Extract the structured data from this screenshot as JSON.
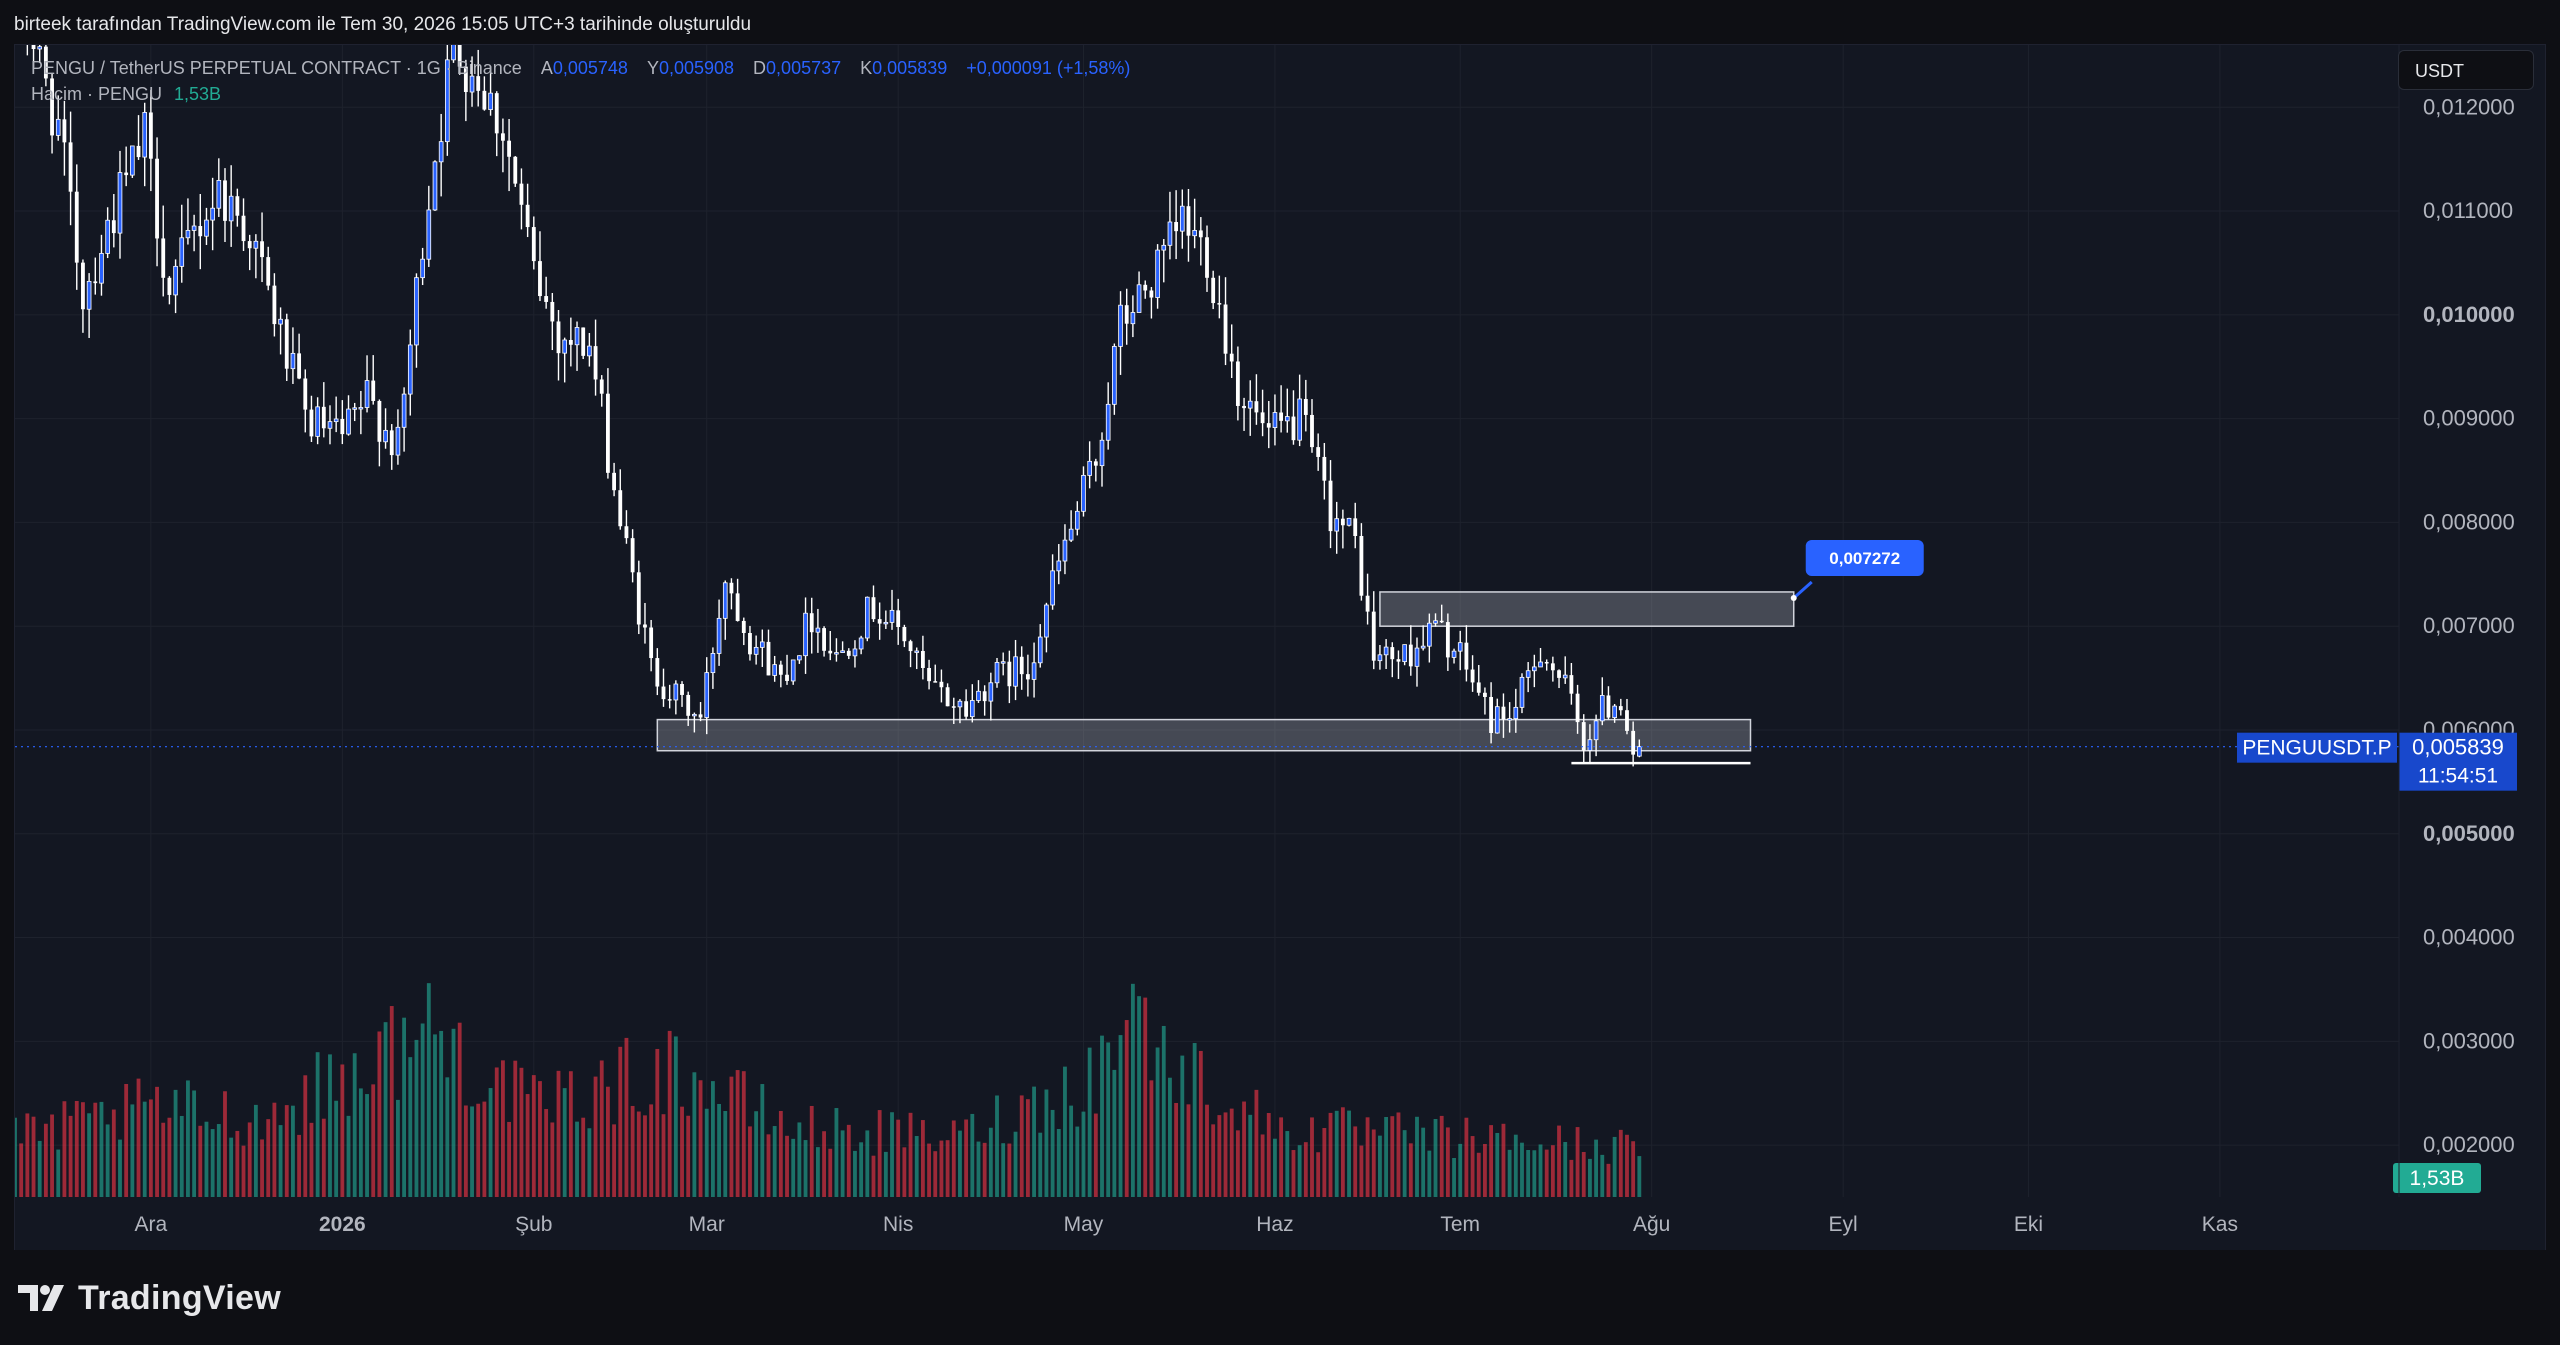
{
  "header": {
    "caption": "birteek tarafından TradingView.com ile Tem 30, 2026 15:05 UTC+3 tarihinde oluşturuldu"
  },
  "legend": {
    "symbol": "PENGU / TetherUS PERPETUAL CONTRACT · 1G · Binance",
    "open_label": "A",
    "open": "0,005748",
    "high_label": "Y",
    "high": "0,005908",
    "low_label": "D",
    "low": "0,005737",
    "close_label": "K",
    "close": "0,005839",
    "change": "+0,000091 (+1,58%)",
    "volume_label": "Hacim · PENGU",
    "volume_value": "1,53B"
  },
  "currency": "USDT",
  "footer": {
    "brand": "TradingView"
  },
  "colors": {
    "background": "#131722",
    "grid": "#1e222d",
    "candle_up": "#2962ff",
    "candle_down": "#ffffff",
    "volume_up": "#22ab94",
    "volume_down": "#f23645",
    "price_tag": "#1848cc",
    "callout": "#2962ff"
  },
  "chart_data": {
    "type": "candlestick",
    "symbol": "PENGUUSDT.P",
    "interval": "1G",
    "ylim": [
      0.0015,
      0.0126
    ],
    "y_ticks": [
      "0,012000",
      "0,011000",
      "0,010000",
      "0,009000",
      "0,008000",
      "0,007000",
      "0,006000",
      "0,005000",
      "0,004000",
      "0,003000",
      "0,002000"
    ],
    "y_tick_values": [
      0.012,
      0.011,
      0.01,
      0.009,
      0.008,
      0.007,
      0.006,
      0.005,
      0.004,
      0.003,
      0.002
    ],
    "y_ticks_bold": [
      "0,010000",
      "0,005000"
    ],
    "x_ticks": [
      {
        "label": "Ara",
        "date": "2025-12-01",
        "bold": false
      },
      {
        "label": "2026",
        "date": "2026-01-01",
        "bold": true
      },
      {
        "label": "Şub",
        "date": "2026-02-01",
        "bold": false
      },
      {
        "label": "Mar",
        "date": "2026-03-01",
        "bold": false
      },
      {
        "label": "Nis",
        "date": "2026-04-01",
        "bold": false
      },
      {
        "label": "May",
        "date": "2026-05-01",
        "bold": false
      },
      {
        "label": "Haz",
        "date": "2026-06-01",
        "bold": false
      },
      {
        "label": "Tem",
        "date": "2026-07-01",
        "bold": false
      },
      {
        "label": "Ağu",
        "date": "2026-08-01",
        "bold": false
      },
      {
        "label": "Eyl",
        "date": "2026-09-01",
        "bold": false
      },
      {
        "label": "Eki",
        "date": "2026-10-01",
        "bold": false
      },
      {
        "label": "Kas",
        "date": "2026-11-01",
        "bold": false
      }
    ],
    "x_range": [
      "2025-11-09",
      "2026-11-30"
    ],
    "grid": true,
    "price_path": {
      "start_date": "2025-11-09",
      "end_date": "2026-07-30",
      "points": [
        [
          "2025-11-09",
          0.0132
        ],
        [
          "2025-11-16",
          0.0118
        ],
        [
          "2025-11-20",
          0.0102
        ],
        [
          "2025-11-25",
          0.011
        ],
        [
          "2025-11-30",
          0.0117
        ],
        [
          "2025-12-04",
          0.0102
        ],
        [
          "2025-12-08",
          0.0108
        ],
        [
          "2025-12-12",
          0.0112
        ],
        [
          "2025-12-17",
          0.0108
        ],
        [
          "2025-12-22",
          0.0098
        ],
        [
          "2025-12-26",
          0.009
        ],
        [
          "2026-01-01",
          0.0088
        ],
        [
          "2026-01-05",
          0.0092
        ],
        [
          "2026-01-10",
          0.0087
        ],
        [
          "2026-01-15",
          0.0112
        ],
        [
          "2026-01-19",
          0.0126
        ],
        [
          "2026-01-23",
          0.0123
        ],
        [
          "2026-01-27",
          0.0118
        ],
        [
          "2026-02-01",
          0.0104
        ],
        [
          "2026-02-05",
          0.0098
        ],
        [
          "2026-02-10",
          0.0097
        ],
        [
          "2026-02-15",
          0.008
        ],
        [
          "2026-02-20",
          0.0066
        ],
        [
          "2026-02-24",
          0.0063
        ],
        [
          "2026-02-28",
          0.0061
        ],
        [
          "2026-03-04",
          0.0075
        ],
        [
          "2026-03-08",
          0.0069
        ],
        [
          "2026-03-13",
          0.0065
        ],
        [
          "2026-03-18",
          0.0071
        ],
        [
          "2026-03-22",
          0.0067
        ],
        [
          "2026-03-28",
          0.0072
        ],
        [
          "2026-04-02",
          0.0069
        ],
        [
          "2026-04-06",
          0.0064
        ],
        [
          "2026-04-12",
          0.0062
        ],
        [
          "2026-04-16",
          0.0065
        ],
        [
          "2026-04-22",
          0.0066
        ],
        [
          "2026-04-27",
          0.0076
        ],
        [
          "2026-05-03",
          0.0086
        ],
        [
          "2026-05-07",
          0.0099
        ],
        [
          "2026-05-13",
          0.0104
        ],
        [
          "2026-05-17",
          0.0109
        ],
        [
          "2026-05-21",
          0.0106
        ],
        [
          "2026-05-26",
          0.0093
        ],
        [
          "2026-05-31",
          0.0088
        ],
        [
          "2026-06-05",
          0.009
        ],
        [
          "2026-06-10",
          0.0081
        ],
        [
          "2026-06-14",
          0.0078
        ],
        [
          "2026-06-17",
          0.0067
        ],
        [
          "2026-06-22",
          0.0067
        ],
        [
          "2026-06-27",
          0.007
        ],
        [
          "2026-07-02",
          0.0066
        ],
        [
          "2026-07-06",
          0.0061
        ],
        [
          "2026-07-10",
          0.0062
        ],
        [
          "2026-07-14",
          0.0068
        ],
        [
          "2026-07-18",
          0.0064
        ],
        [
          "2026-07-21",
          0.0059
        ],
        [
          "2026-07-24",
          0.0062
        ],
        [
          "2026-07-27",
          0.0063
        ],
        [
          "2026-07-29",
          0.0058
        ],
        [
          "2026-07-30",
          0.0058
        ]
      ]
    },
    "volume_path": {
      "unit": "relative",
      "points": [
        [
          "2025-11-09",
          0.3
        ],
        [
          "2025-12-01",
          0.45
        ],
        [
          "2025-12-20",
          0.4
        ],
        [
          "2026-01-15",
          0.85
        ],
        [
          "2026-02-01",
          0.45
        ],
        [
          "2026-02-23",
          0.65
        ],
        [
          "2026-03-15",
          0.35
        ],
        [
          "2026-04-10",
          0.3
        ],
        [
          "2026-05-03",
          0.6
        ],
        [
          "2026-05-08",
          1.0
        ],
        [
          "2026-05-14",
          0.7
        ],
        [
          "2026-06-01",
          0.35
        ],
        [
          "2026-07-01",
          0.3
        ],
        [
          "2026-07-30",
          0.25
        ]
      ]
    },
    "zones": [
      {
        "from": "2026-02-21",
        "to": "2026-08-17",
        "low": 0.0058,
        "high": 0.0061,
        "color": "#b2b5be"
      },
      {
        "from": "2026-06-18",
        "to": "2026-08-24",
        "low": 0.007,
        "high": 0.00733,
        "color": "#b2b5be"
      }
    ],
    "support_line": {
      "from": "2026-07-19",
      "to": "2026-08-17",
      "value": 0.00568
    },
    "price_callout": {
      "date": "2026-08-24",
      "value": 0.007272,
      "label": "0,007272"
    },
    "last_price": {
      "value": 0.005839,
      "symbol_label": "PENGUUSDT.P",
      "price_label": "0,005839",
      "countdown": "11:54:51"
    },
    "volume_badge": "1,53B"
  }
}
